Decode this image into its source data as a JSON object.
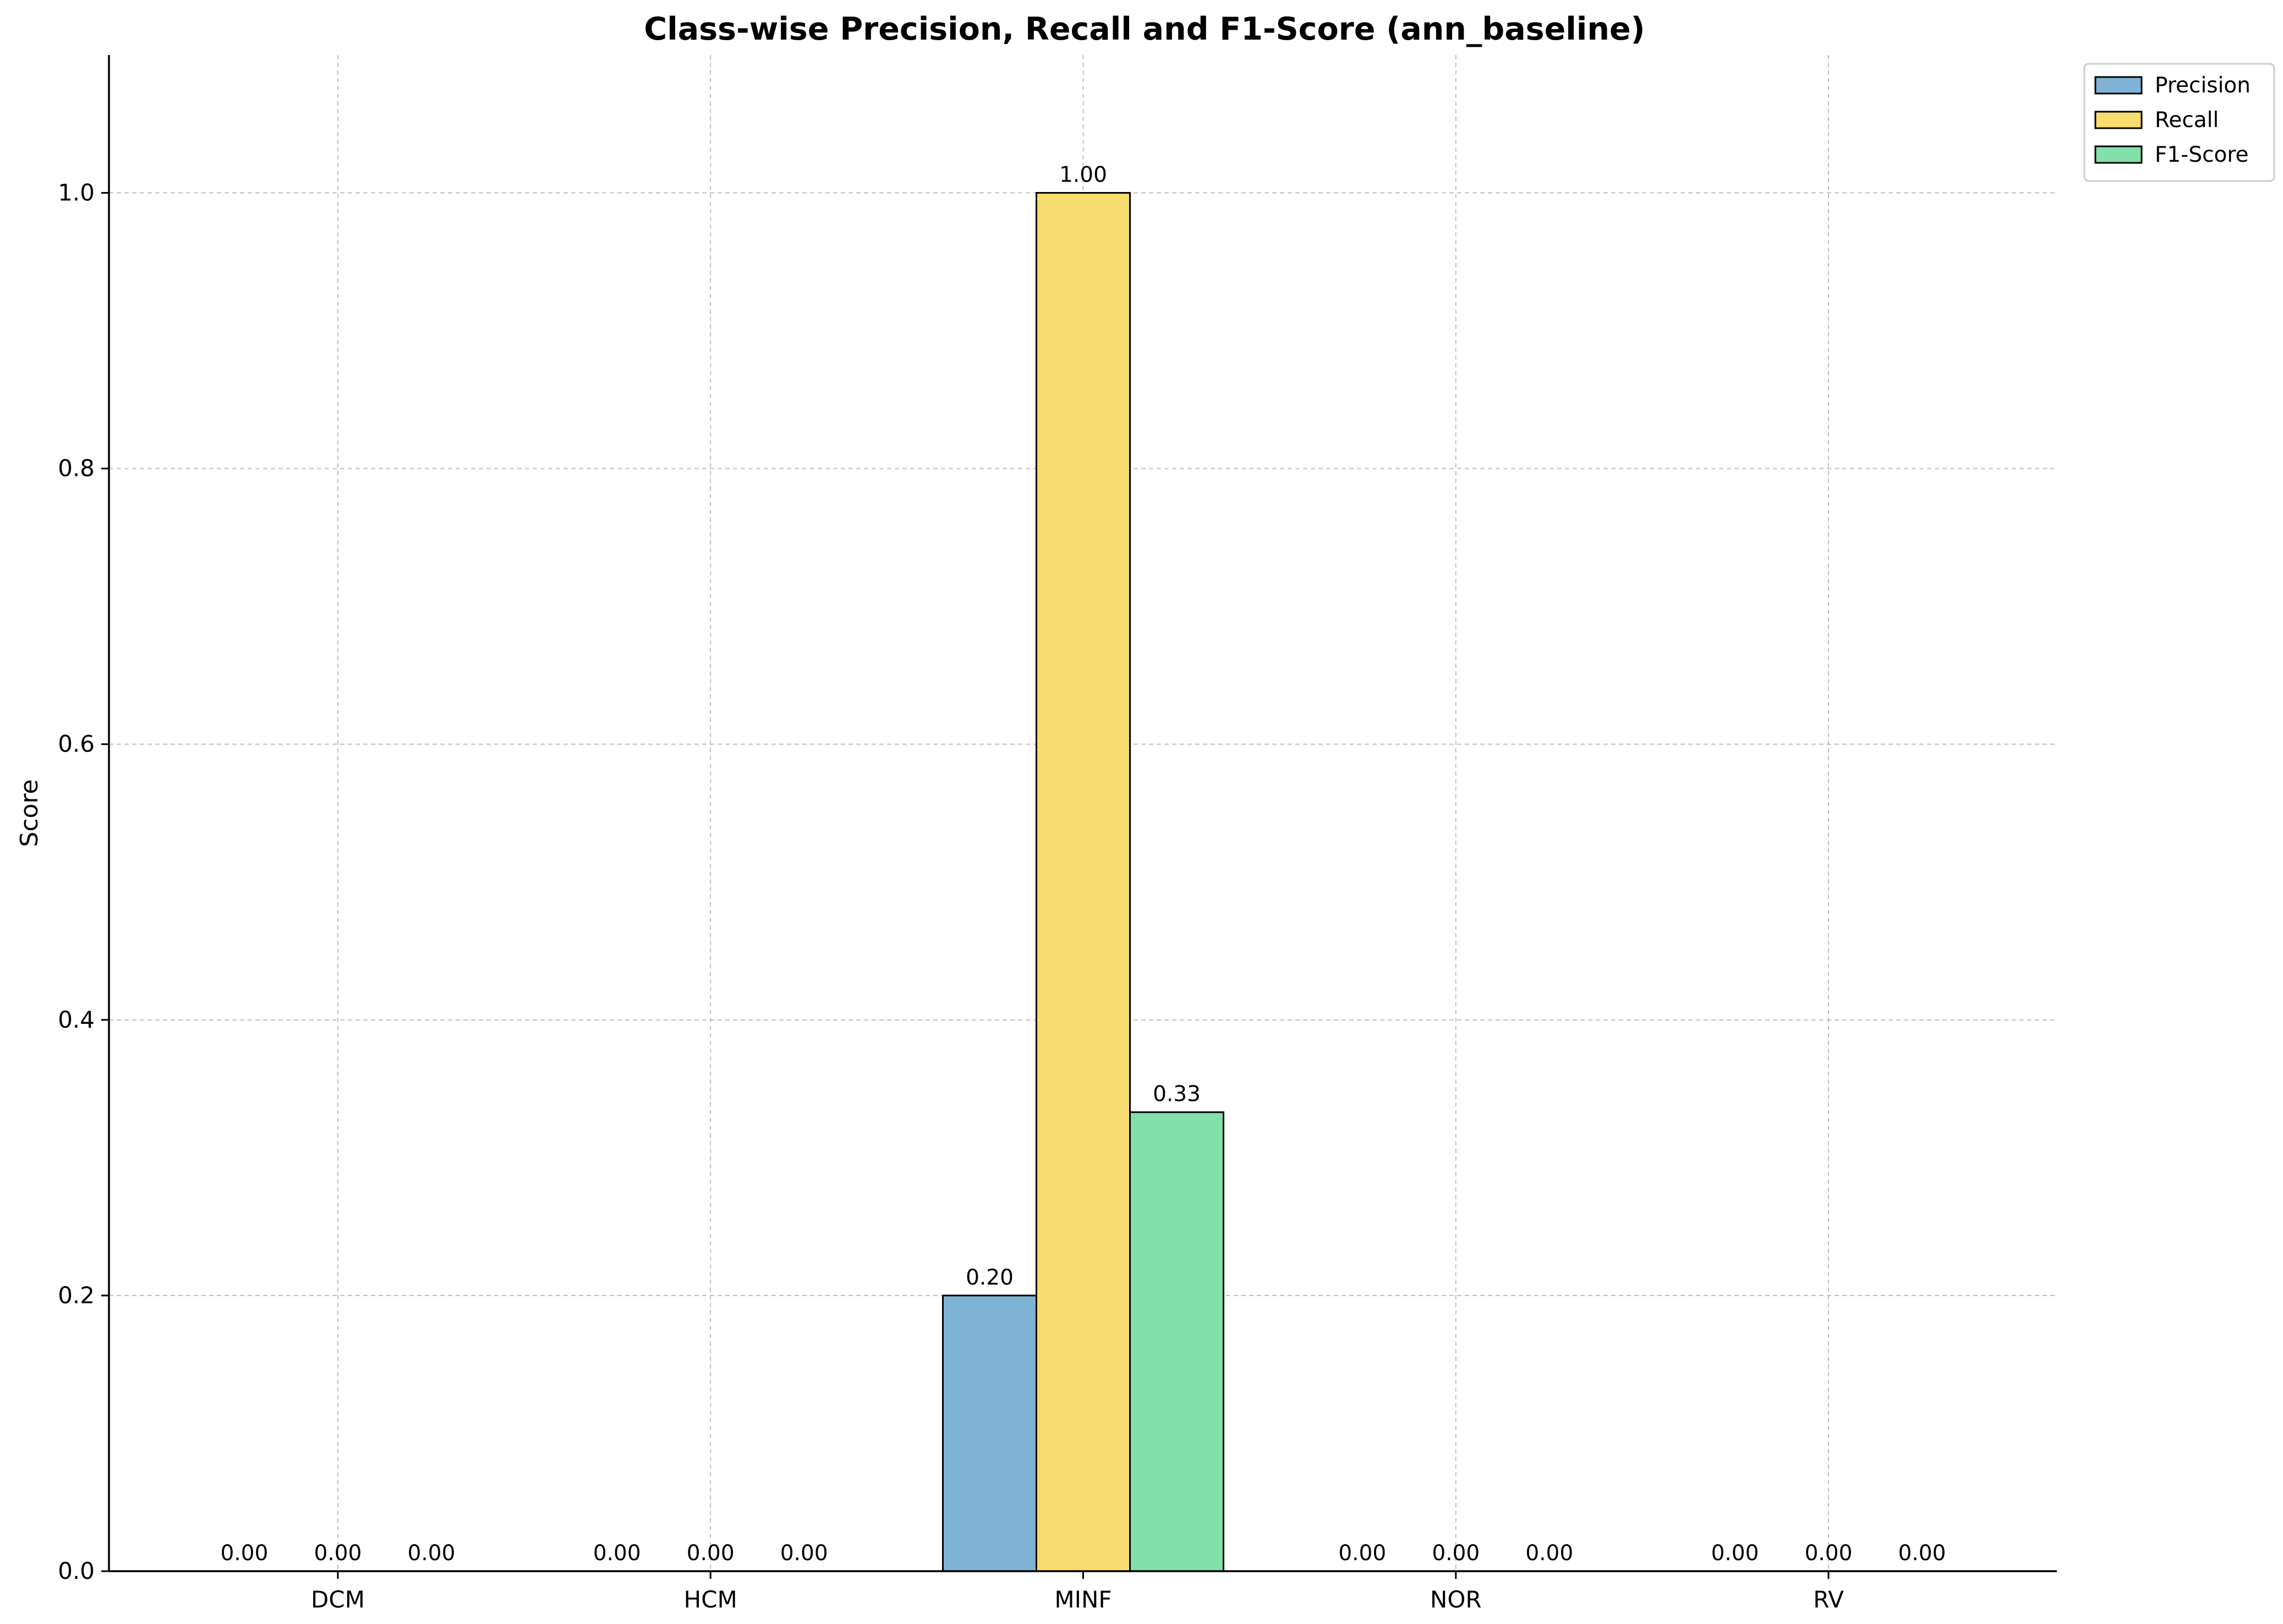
{
  "chart_data": {
    "type": "bar",
    "title": "Class-wise Precision, Recall and F1-Score (ann_baseline)",
    "xlabel": "",
    "ylabel": "Score",
    "categories": [
      "DCM",
      "HCM",
      "MINF",
      "NOR",
      "RV"
    ],
    "series": [
      {
        "name": "Precision",
        "color": "#7fb3d5",
        "values": [
          0.0,
          0.0,
          0.2,
          0.0,
          0.0
        ],
        "labels": [
          "0.00",
          "0.00",
          "0.20",
          "0.00",
          "0.00"
        ]
      },
      {
        "name": "Recall",
        "color": "#f7dc6f",
        "values": [
          0.0,
          0.0,
          1.0,
          0.0,
          0.0
        ],
        "labels": [
          "0.00",
          "0.00",
          "1.00",
          "0.00",
          "0.00"
        ]
      },
      {
        "name": "F1-Score",
        "color": "#82e0aa",
        "values": [
          0.0,
          0.0,
          0.333,
          0.0,
          0.0
        ],
        "labels": [
          "0.00",
          "0.00",
          "0.33",
          "0.00",
          "0.00"
        ]
      }
    ],
    "ylim": [
      0,
      1.1
    ],
    "yticks": [
      "0.0",
      "0.2",
      "0.4",
      "0.6",
      "0.8",
      "1.0"
    ],
    "grid": true,
    "legend_position": "upper right, outside plot"
  }
}
